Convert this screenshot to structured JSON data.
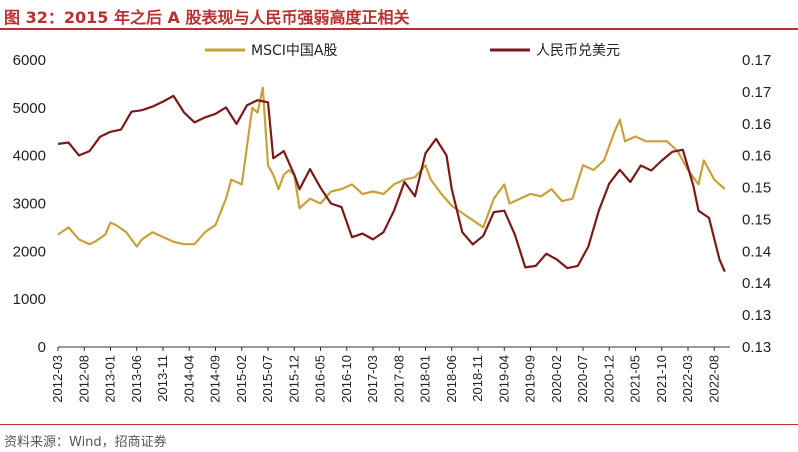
{
  "header": {
    "title": "图 32：2015 年之后 A 股表现与人民币强弱高度正相关"
  },
  "footer": {
    "source": "资料来源：Wind，招商证券"
  },
  "colors": {
    "msci": "#c8a13b",
    "cny": "#7b1a1a",
    "brand": "#b8312f"
  },
  "chart_data": {
    "type": "line",
    "title": "",
    "y_left": {
      "ylim": [
        0,
        6000
      ],
      "ticks": [
        "0",
        "1000",
        "2000",
        "3000",
        "4000",
        "5000",
        "6000"
      ]
    },
    "y_right": {
      "ylim": [
        0.13,
        0.17
      ],
      "ticks": [
        "0.13",
        "0.13",
        "0.14",
        "0.14",
        "0.15",
        "0.15",
        "0.16",
        "0.16",
        "0.17",
        "0.17"
      ]
    },
    "x_ticks": [
      "2012-03",
      "2012-08",
      "2013-01",
      "2013-06",
      "2013-11",
      "2014-04",
      "2014-09",
      "2015-02",
      "2015-07",
      "2015-12",
      "2016-05",
      "2016-10",
      "2017-03",
      "2017-08",
      "2018-01",
      "2018-06",
      "2018-11",
      "2019-04",
      "2019-09",
      "2020-02",
      "2020-07",
      "2020-12",
      "2021-05",
      "2021-10",
      "2022-03",
      "2022-08"
    ],
    "legend": "top",
    "grid": false,
    "series": [
      {
        "name": "MSCI中国A股",
        "axis": "left",
        "points": [
          [
            "2012-03",
            2350
          ],
          [
            "2012-05",
            2500
          ],
          [
            "2012-07",
            2250
          ],
          [
            "2012-09",
            2150
          ],
          [
            "2012-10",
            2200
          ],
          [
            "2012-12",
            2350
          ],
          [
            "2013-01",
            2600
          ],
          [
            "2013-02",
            2550
          ],
          [
            "2013-04",
            2400
          ],
          [
            "2013-06",
            2100
          ],
          [
            "2013-07",
            2250
          ],
          [
            "2013-09",
            2400
          ],
          [
            "2013-11",
            2300
          ],
          [
            "2014-01",
            2200
          ],
          [
            "2014-03",
            2150
          ],
          [
            "2014-05",
            2150
          ],
          [
            "2014-07",
            2400
          ],
          [
            "2014-09",
            2550
          ],
          [
            "2014-11",
            3100
          ],
          [
            "2014-12",
            3500
          ],
          [
            "2015-02",
            3400
          ],
          [
            "2015-03",
            4200
          ],
          [
            "2015-04",
            5000
          ],
          [
            "2015-05",
            4900
          ],
          [
            "2015-06",
            5420
          ],
          [
            "2015-07",
            3800
          ],
          [
            "2015-08",
            3600
          ],
          [
            "2015-09",
            3300
          ],
          [
            "2015-10",
            3600
          ],
          [
            "2015-11",
            3700
          ],
          [
            "2015-12",
            3600
          ],
          [
            "2016-01",
            2900
          ],
          [
            "2016-03",
            3100
          ],
          [
            "2016-05",
            3000
          ],
          [
            "2016-07",
            3250
          ],
          [
            "2016-09",
            3300
          ],
          [
            "2016-11",
            3400
          ],
          [
            "2017-01",
            3200
          ],
          [
            "2017-03",
            3250
          ],
          [
            "2017-05",
            3200
          ],
          [
            "2017-07",
            3400
          ],
          [
            "2017-09",
            3500
          ],
          [
            "2017-11",
            3550
          ],
          [
            "2018-01",
            3800
          ],
          [
            "2018-02",
            3500
          ],
          [
            "2018-04",
            3200
          ],
          [
            "2018-06",
            2950
          ],
          [
            "2018-08",
            2800
          ],
          [
            "2018-10",
            2650
          ],
          [
            "2018-12",
            2500
          ],
          [
            "2019-02",
            3100
          ],
          [
            "2019-04",
            3400
          ],
          [
            "2019-05",
            3000
          ],
          [
            "2019-07",
            3100
          ],
          [
            "2019-09",
            3200
          ],
          [
            "2019-11",
            3150
          ],
          [
            "2020-01",
            3300
          ],
          [
            "2020-03",
            3050
          ],
          [
            "2020-05",
            3100
          ],
          [
            "2020-07",
            3800
          ],
          [
            "2020-09",
            3700
          ],
          [
            "2020-11",
            3900
          ],
          [
            "2021-01",
            4500
          ],
          [
            "2021-02",
            4750
          ],
          [
            "2021-03",
            4300
          ],
          [
            "2021-05",
            4400
          ],
          [
            "2021-07",
            4300
          ],
          [
            "2021-09",
            4300
          ],
          [
            "2021-11",
            4300
          ],
          [
            "2022-01",
            4100
          ],
          [
            "2022-03",
            3700
          ],
          [
            "2022-05",
            3400
          ],
          [
            "2022-06",
            3900
          ],
          [
            "2022-08",
            3500
          ],
          [
            "2022-10",
            3300
          ]
        ]
      },
      {
        "name": "人民币兑美元",
        "axis": "right",
        "points": [
          [
            "2012-03",
            0.1583
          ],
          [
            "2012-05",
            0.1585
          ],
          [
            "2012-07",
            0.1567
          ],
          [
            "2012-09",
            0.1573
          ],
          [
            "2012-11",
            0.1593
          ],
          [
            "2013-01",
            0.16
          ],
          [
            "2013-03",
            0.1603
          ],
          [
            "2013-05",
            0.1628
          ],
          [
            "2013-07",
            0.163
          ],
          [
            "2013-09",
            0.1635
          ],
          [
            "2013-11",
            0.1642
          ],
          [
            "2014-01",
            0.165
          ],
          [
            "2014-03",
            0.1627
          ],
          [
            "2014-05",
            0.1613
          ],
          [
            "2014-07",
            0.162
          ],
          [
            "2014-09",
            0.1625
          ],
          [
            "2014-11",
            0.1634
          ],
          [
            "2015-01",
            0.1611
          ],
          [
            "2015-03",
            0.1637
          ],
          [
            "2015-05",
            0.1644
          ],
          [
            "2015-07",
            0.1641
          ],
          [
            "2015-08",
            0.1563
          ],
          [
            "2015-10",
            0.1573
          ],
          [
            "2015-12",
            0.154
          ],
          [
            "2016-01",
            0.152
          ],
          [
            "2016-03",
            0.1548
          ],
          [
            "2016-05",
            0.1522
          ],
          [
            "2016-07",
            0.15
          ],
          [
            "2016-09",
            0.1495
          ],
          [
            "2016-11",
            0.1453
          ],
          [
            "2017-01",
            0.1458
          ],
          [
            "2017-03",
            0.145
          ],
          [
            "2017-05",
            0.146
          ],
          [
            "2017-07",
            0.149
          ],
          [
            "2017-09",
            0.153
          ],
          [
            "2017-11",
            0.151
          ],
          [
            "2018-01",
            0.157
          ],
          [
            "2018-03",
            0.159
          ],
          [
            "2018-05",
            0.1567
          ],
          [
            "2018-06",
            0.152
          ],
          [
            "2018-08",
            0.146
          ],
          [
            "2018-10",
            0.1443
          ],
          [
            "2018-12",
            0.1455
          ],
          [
            "2019-02",
            0.1488
          ],
          [
            "2019-04",
            0.149
          ],
          [
            "2019-06",
            0.1457
          ],
          [
            "2019-08",
            0.1411
          ],
          [
            "2019-10",
            0.1413
          ],
          [
            "2019-12",
            0.143
          ],
          [
            "2020-02",
            0.1422
          ],
          [
            "2020-04",
            0.141
          ],
          [
            "2020-06",
            0.1413
          ],
          [
            "2020-08",
            0.144
          ],
          [
            "2020-10",
            0.149
          ],
          [
            "2020-12",
            0.1528
          ],
          [
            "2021-02",
            0.1547
          ],
          [
            "2021-04",
            0.153
          ],
          [
            "2021-06",
            0.1553
          ],
          [
            "2021-08",
            0.1546
          ],
          [
            "2021-10",
            0.156
          ],
          [
            "2021-12",
            0.1572
          ],
          [
            "2022-02",
            0.1575
          ],
          [
            "2022-04",
            0.1525
          ],
          [
            "2022-05",
            0.149
          ],
          [
            "2022-07",
            0.148
          ],
          [
            "2022-09",
            0.1422
          ],
          [
            "2022-10",
            0.1405
          ]
        ]
      }
    ]
  }
}
